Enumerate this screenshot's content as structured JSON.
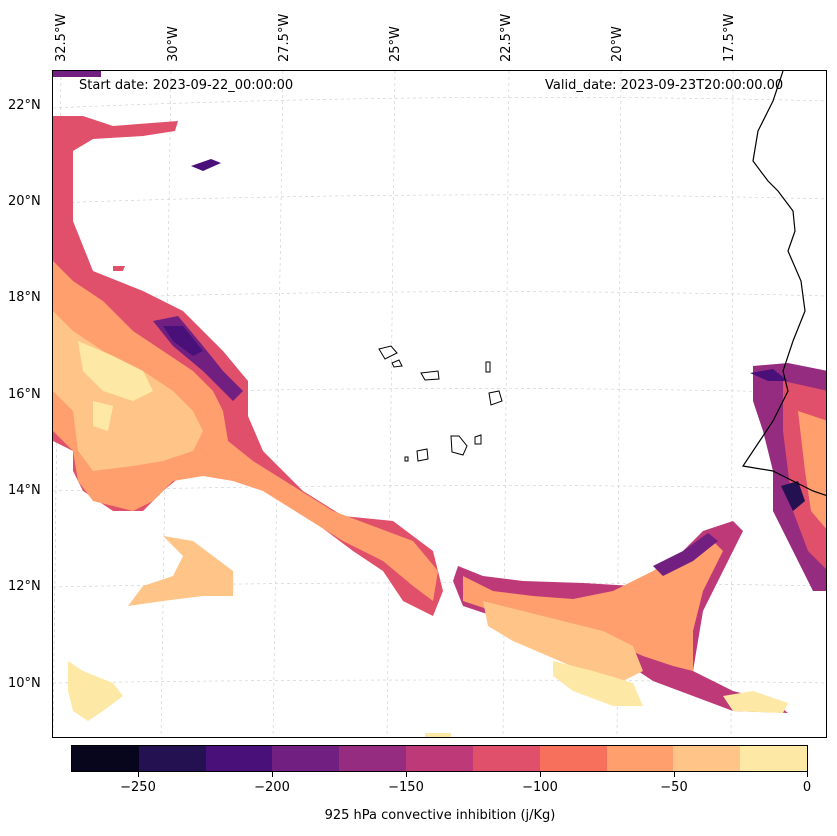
{
  "map": {
    "start_date_label": "Start date: 2023-09-22_00:00:00",
    "valid_date_label": "Valid_date: 2023-09-23T20:00:00.00",
    "longitude_labels": [
      "32.5°W",
      "30°W",
      "27.5°W",
      "25°W",
      "22.5°W",
      "20°W",
      "17.5°W"
    ],
    "latitude_labels": [
      "22°N",
      "20°N",
      "18°N",
      "16°N",
      "14°N",
      "12°N",
      "10°N"
    ],
    "features": [
      "Cabo Verde islands",
      "West African coastline"
    ]
  },
  "colorbar": {
    "title": "925 hPa convective inhibition (j/Kg)",
    "tick_labels": [
      "−250",
      "−200",
      "−150",
      "−100",
      "−50",
      "0"
    ],
    "levels": [
      -275,
      -250,
      -225,
      -200,
      -175,
      -150,
      -125,
      -100,
      -75,
      -50,
      -25,
      0
    ],
    "colors": [
      "#07061c",
      "#231151",
      "#4a1079",
      "#711f81",
      "#952c80",
      "#bd3977",
      "#e0506b",
      "#f6705c",
      "#fe9f6d",
      "#fec488",
      "#fde8a6"
    ]
  }
}
